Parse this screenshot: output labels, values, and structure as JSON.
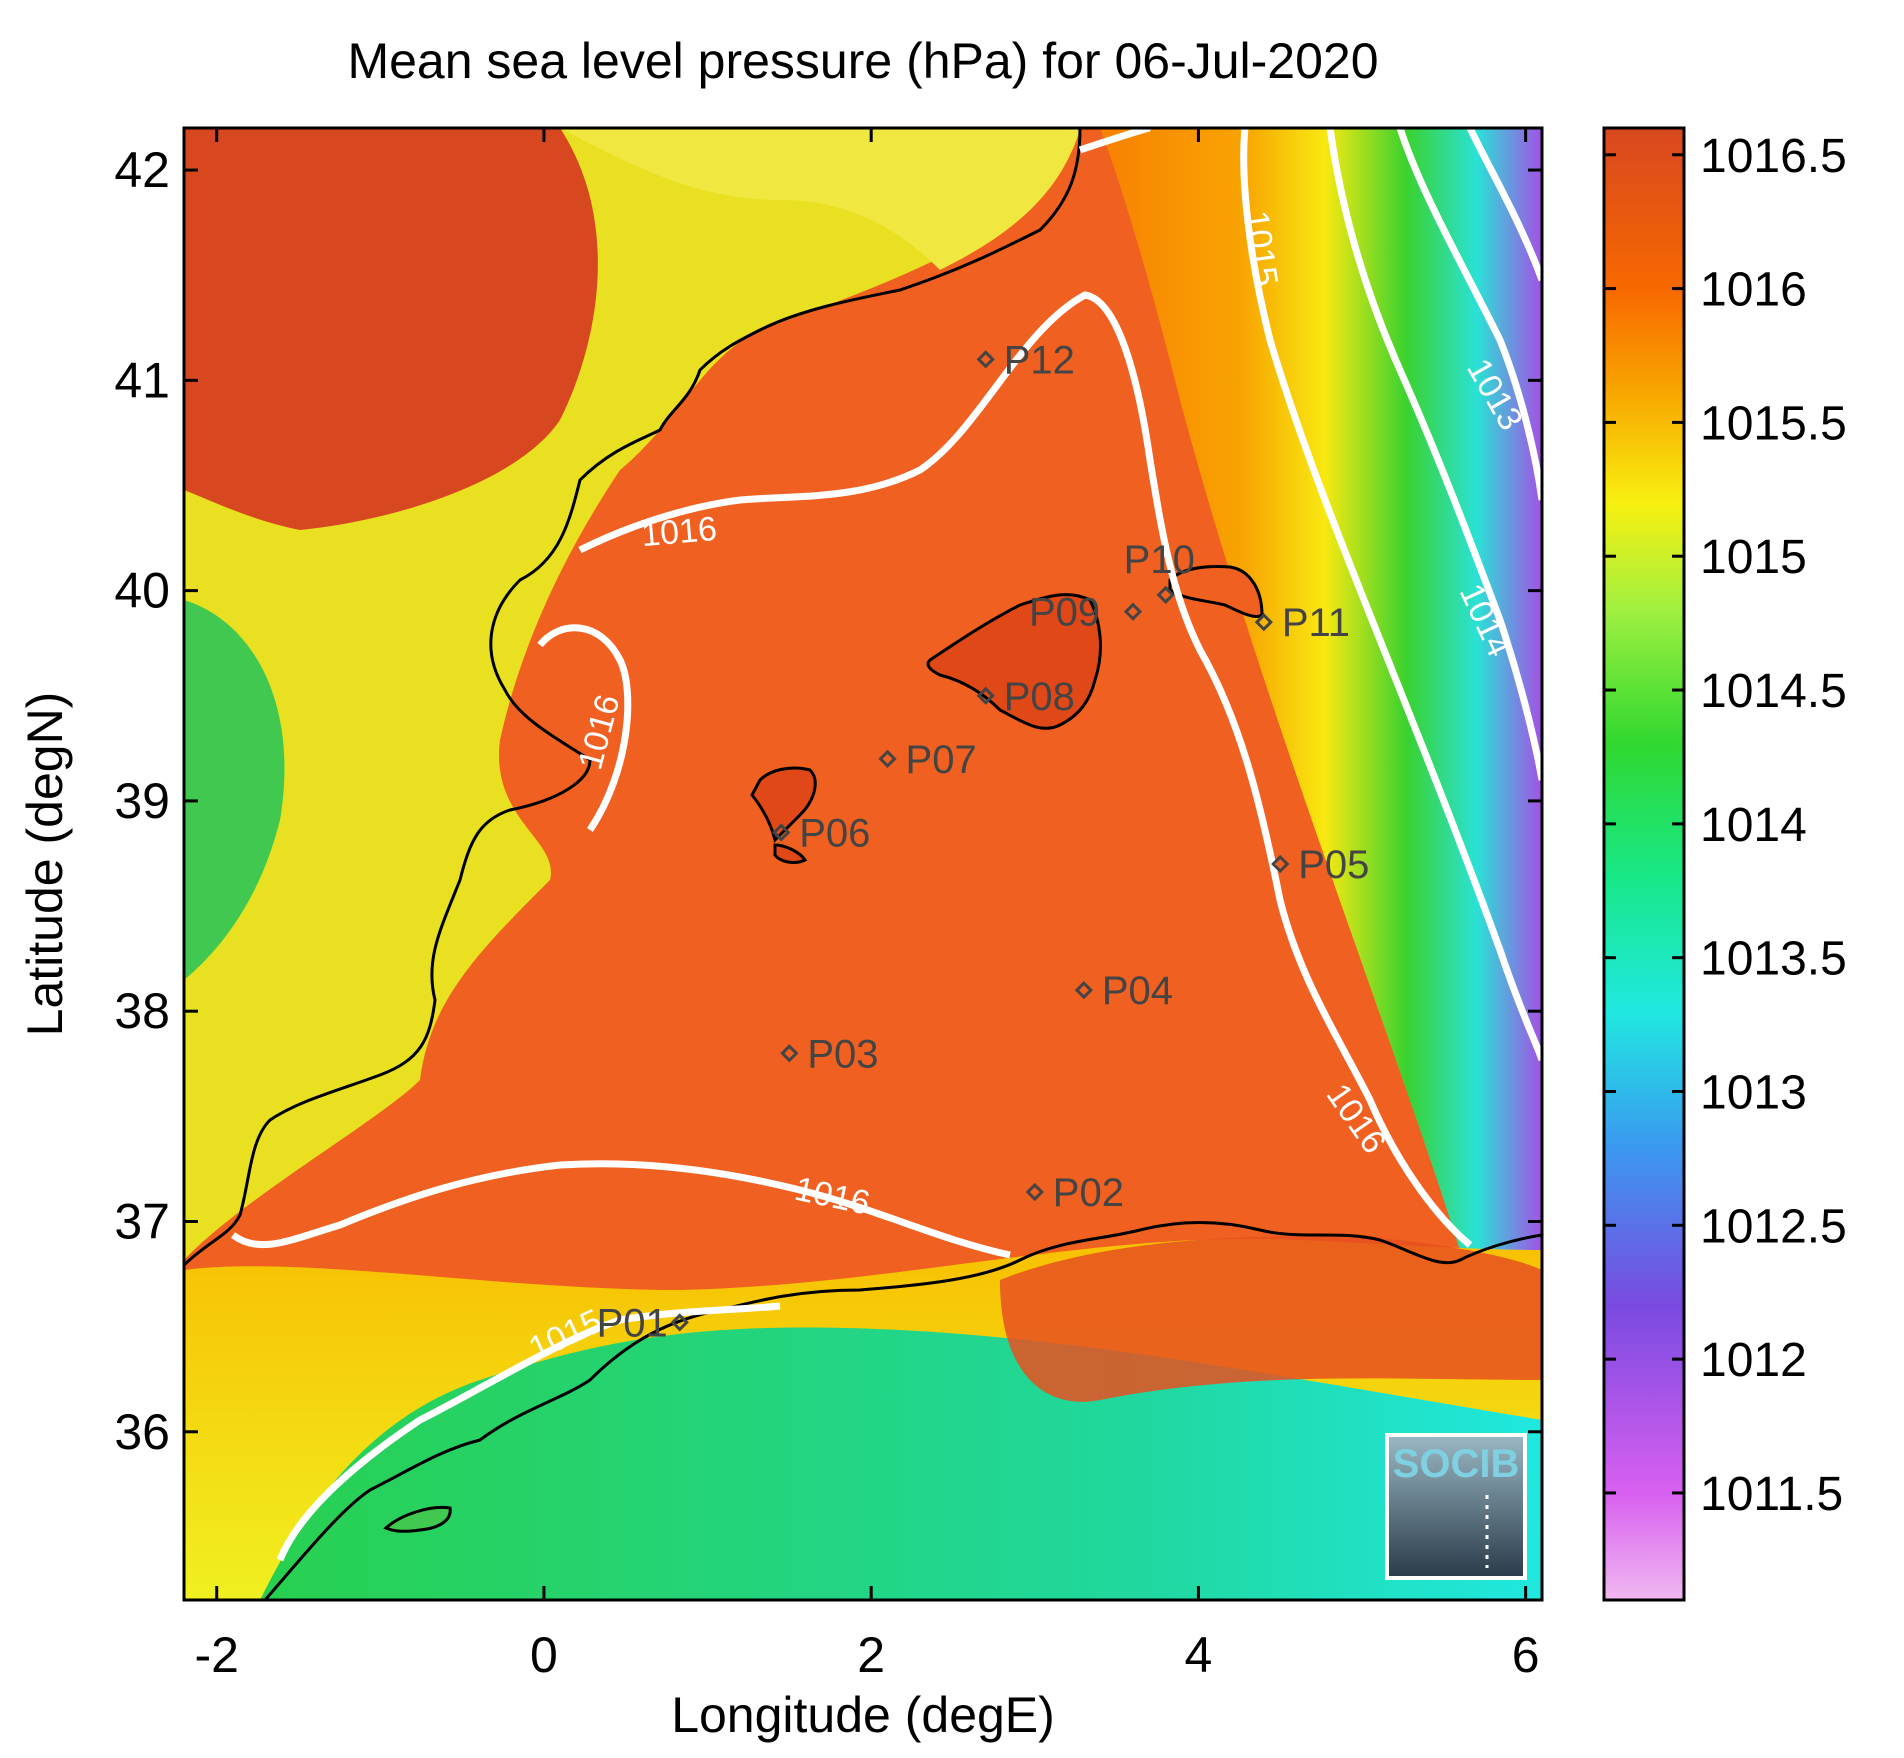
{
  "title": "Mean sea level pressure (hPa) for 06-Jul-2020",
  "xlabel": "Longitude (degE)",
  "ylabel": "Latitude (degN)",
  "map": {
    "xlim": [
      -2.2,
      6.1
    ],
    "ylim": [
      35.2,
      42.2
    ],
    "x_ticks": [
      -2,
      0,
      2,
      4,
      6
    ],
    "y_ticks": [
      36,
      37,
      38,
      39,
      40,
      41,
      42
    ]
  },
  "colorbar": {
    "range": [
      1011.1,
      1016.6
    ],
    "ticks": [
      1011.5,
      1012,
      1012.5,
      1013,
      1013.5,
      1014,
      1014.5,
      1015,
      1015.5,
      1016,
      1016.5
    ],
    "stops": [
      {
        "v": 1011.1,
        "c": "#f0b8f0"
      },
      {
        "v": 1011.5,
        "c": "#d860f0"
      },
      {
        "v": 1012.2,
        "c": "#7a4ae0"
      },
      {
        "v": 1012.8,
        "c": "#3a9af0"
      },
      {
        "v": 1013.3,
        "c": "#20e8e0"
      },
      {
        "v": 1013.8,
        "c": "#18e888"
      },
      {
        "v": 1014.3,
        "c": "#30d830"
      },
      {
        "v": 1014.8,
        "c": "#a0f040"
      },
      {
        "v": 1015.2,
        "c": "#f8f010"
      },
      {
        "v": 1015.6,
        "c": "#f8a800"
      },
      {
        "v": 1016.0,
        "c": "#f86800"
      },
      {
        "v": 1016.6,
        "c": "#d84820"
      }
    ]
  },
  "stations": [
    {
      "id": "P01",
      "lon": 0.83,
      "lat": 36.52
    },
    {
      "id": "P02",
      "lon": 3.0,
      "lat": 37.14
    },
    {
      "id": "P03",
      "lon": 1.5,
      "lat": 37.8
    },
    {
      "id": "P04",
      "lon": 3.3,
      "lat": 38.1
    },
    {
      "id": "P05",
      "lon": 4.5,
      "lat": 38.7
    },
    {
      "id": "P06",
      "lon": 1.45,
      "lat": 38.85
    },
    {
      "id": "P07",
      "lon": 2.1,
      "lat": 39.2
    },
    {
      "id": "P08",
      "lon": 2.7,
      "lat": 39.5
    },
    {
      "id": "P09",
      "lon": 3.6,
      "lat": 39.9
    },
    {
      "id": "P10",
      "lon": 3.8,
      "lat": 39.98
    },
    {
      "id": "P11",
      "lon": 4.4,
      "lat": 39.85
    },
    {
      "id": "P12",
      "lon": 2.7,
      "lat": 41.1
    }
  ],
  "contour_labels": [
    "1016",
    "1016",
    "1016",
    "1016",
    "1015",
    "1015",
    "1014",
    "1013"
  ],
  "logo": {
    "text": "SOCIB"
  },
  "colors": {
    "contour": "#ffffff",
    "coast": "#000000",
    "station": "#444444"
  }
}
